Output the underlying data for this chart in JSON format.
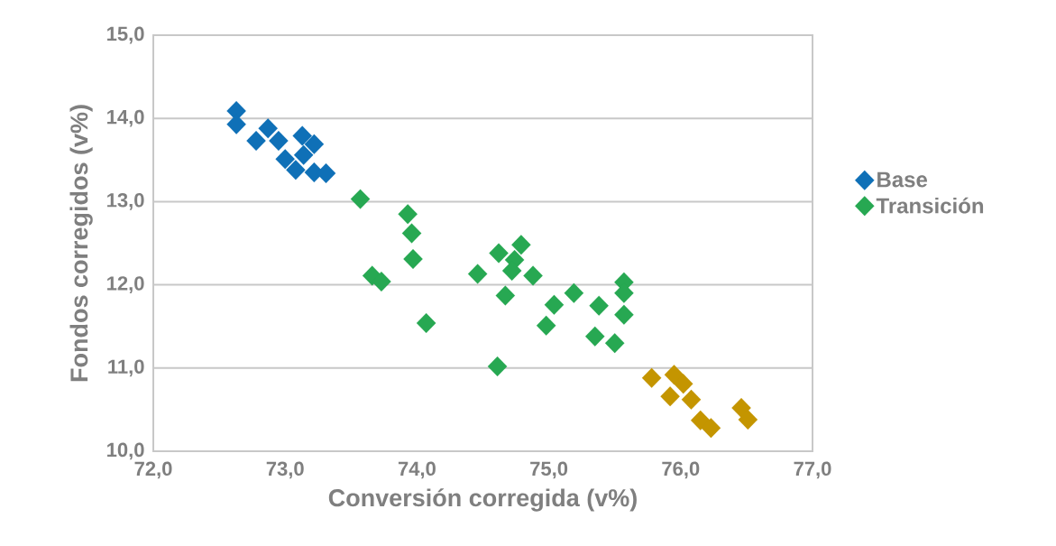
{
  "chart_data": {
    "type": "scatter",
    "xlabel": "Conversión corregida (v%)",
    "ylabel": "Fondos corregidos (v%)",
    "xlim": [
      72,
      77
    ],
    "ylim": [
      10,
      15
    ],
    "xticks": [
      {
        "value": 72,
        "label": "72,0"
      },
      {
        "value": 73,
        "label": "73,0"
      },
      {
        "value": 74,
        "label": "74,0"
      },
      {
        "value": 75,
        "label": "75,0"
      },
      {
        "value": 76,
        "label": "76,0"
      },
      {
        "value": 77,
        "label": "77,0"
      }
    ],
    "yticks": [
      {
        "value": 10,
        "label": "10,0"
      },
      {
        "value": 11,
        "label": "11,0"
      },
      {
        "value": 12,
        "label": "12,0"
      },
      {
        "value": 13,
        "label": "13,0"
      },
      {
        "value": 14,
        "label": "14,0"
      },
      {
        "value": 15,
        "label": "15,0"
      }
    ],
    "grid": "y",
    "legend": "right",
    "marker": "diamond",
    "series": [
      {
        "name": "Base",
        "color": "#0f70b7",
        "x": [
          72.63,
          72.63,
          72.78,
          72.87,
          72.95,
          73.0,
          73.08,
          73.13,
          73.14,
          73.22,
          73.22,
          73.31
        ],
        "values": [
          14.09,
          13.93,
          13.73,
          13.88,
          13.73,
          13.51,
          13.38,
          13.79,
          13.56,
          13.69,
          13.35,
          13.34
        ]
      },
      {
        "name": "Transición",
        "color": "#27a852",
        "x": [
          73.57,
          73.93,
          73.96,
          73.97,
          73.66,
          73.73,
          74.07,
          74.61,
          74.62,
          74.79,
          74.74,
          74.72,
          74.46,
          74.88,
          74.67,
          75.19,
          75.04,
          74.98,
          75.38,
          75.57,
          75.57,
          75.57,
          75.35,
          75.5
        ],
        "values": [
          13.03,
          12.85,
          12.62,
          12.31,
          12.11,
          12.04,
          11.54,
          11.02,
          12.38,
          12.48,
          12.3,
          12.17,
          12.13,
          12.11,
          11.87,
          11.9,
          11.76,
          11.51,
          11.75,
          12.03,
          11.9,
          11.64,
          11.38,
          11.3
        ]
      },
      {
        "color": "#c49500",
        "x": [
          75.78,
          75.95,
          76.02,
          75.92,
          76.08,
          76.15,
          76.23,
          76.46,
          76.51
        ],
        "values": [
          10.88,
          10.92,
          10.81,
          10.66,
          10.62,
          10.37,
          10.28,
          10.52,
          10.38
        ]
      }
    ]
  }
}
